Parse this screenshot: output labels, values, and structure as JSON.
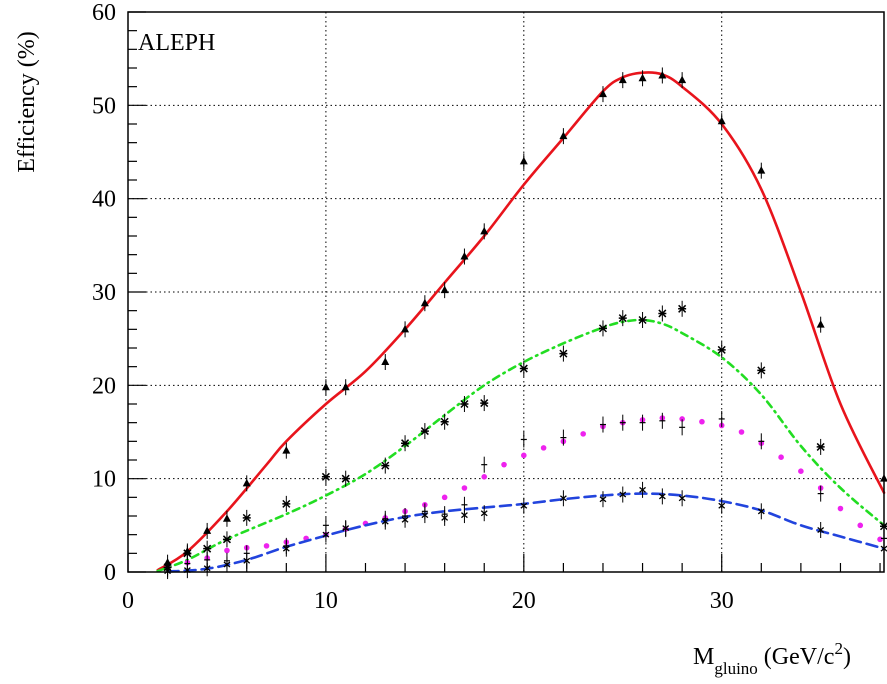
{
  "chart_data": {
    "type": "scatter",
    "title": "",
    "annotation": "ALEPH",
    "xlabel_main": "M",
    "xlabel_sub": "gluino",
    "xlabel_unit": "(GeV/c",
    "xlabel_sup": "2",
    "xlabel_close": ")",
    "ylabel": "Efficiency (%)",
    "xlim": [
      0,
      38.2
    ],
    "ylim": [
      0,
      60
    ],
    "xticks": [
      0,
      10,
      20,
      30
    ],
    "yticks": [
      0,
      10,
      20,
      30,
      40,
      50,
      60
    ],
    "grid": true,
    "colors": {
      "red": "#e8141c",
      "green": "#22dd22",
      "magenta": "#ee22ee",
      "blue": "#2244dd",
      "points": "#000000"
    },
    "curves": [
      {
        "style": "solid",
        "color": "red",
        "x": [
          1.5,
          3,
          5,
          7,
          8,
          10,
          12,
          14,
          16,
          18,
          20,
          22,
          24,
          25,
          26,
          27,
          28,
          30,
          32,
          34,
          36,
          38.2
        ],
        "y": [
          0.2,
          2.2,
          6.5,
          11.5,
          14,
          18,
          21.5,
          26,
          31,
          36,
          41.5,
          46.5,
          51.5,
          53,
          53.5,
          53.3,
          52,
          48,
          41,
          30,
          18,
          8.5
        ]
      },
      {
        "style": "dash-dot",
        "color": "green",
        "x": [
          1.5,
          3,
          5,
          8,
          10,
          12,
          14,
          16,
          18,
          20,
          22,
          24,
          25,
          26,
          27,
          28,
          30,
          32,
          34,
          36,
          38.2
        ],
        "y": [
          0.1,
          1.3,
          3.5,
          6.2,
          8.2,
          10.5,
          13.5,
          16.8,
          20,
          22.5,
          24.5,
          26.2,
          26.8,
          27,
          26.6,
          25.6,
          23,
          19,
          13.5,
          9,
          5
        ]
      },
      {
        "style": "dotted",
        "color": "magenta",
        "x": [
          2,
          3,
          4,
          5,
          6,
          7,
          8,
          9,
          10,
          11,
          12,
          13,
          14,
          15,
          16,
          17,
          18,
          19,
          20,
          21,
          22,
          23,
          24,
          25,
          26,
          27,
          28,
          29,
          30,
          31,
          32,
          33,
          34,
          35,
          36,
          37,
          38
        ],
        "y": [
          0.6,
          1,
          1.5,
          2.3,
          2.6,
          2.8,
          3.2,
          3.6,
          4,
          4.6,
          5.2,
          5.8,
          6.5,
          7.2,
          8,
          9,
          10.2,
          11.5,
          12.5,
          13.3,
          14,
          14.8,
          15.6,
          16,
          16.3,
          16.5,
          16.4,
          16.1,
          15.7,
          15,
          13.8,
          12.3,
          10.8,
          9,
          6.8,
          5,
          3.5
        ]
      },
      {
        "style": "dashed",
        "color": "blue",
        "x": [
          2,
          4,
          6,
          8,
          10,
          12,
          14,
          16,
          18,
          20,
          22,
          24,
          26,
          28,
          30,
          32,
          34,
          36,
          38.2
        ],
        "y": [
          0.05,
          0.35,
          1.3,
          2.7,
          3.9,
          5,
          5.9,
          6.5,
          6.9,
          7.3,
          7.8,
          8.2,
          8.4,
          8.2,
          7.6,
          6.6,
          5,
          3.8,
          2.5
        ]
      }
    ],
    "series": [
      {
        "marker": "triangle",
        "x": [
          2,
          3,
          4,
          5,
          6,
          8,
          10,
          11,
          13,
          14,
          15,
          16,
          17,
          18,
          20,
          22,
          24,
          25,
          26,
          27,
          28,
          30,
          32,
          35,
          38.2
        ],
        "y": [
          1,
          2.2,
          4.4,
          5.7,
          9.5,
          13,
          19.8,
          19.8,
          22.5,
          26,
          28.8,
          30.2,
          33.8,
          36.5,
          44,
          46.7,
          51.2,
          52.7,
          52.9,
          53.2,
          52.7,
          48.3,
          43,
          26.5,
          10
        ]
      },
      {
        "marker": "asterisk",
        "x": [
          2,
          3,
          4,
          5,
          6,
          8,
          10,
          11,
          13,
          14,
          15,
          16,
          17,
          18,
          20,
          22,
          24,
          25,
          26,
          27,
          28,
          30,
          32,
          35,
          38.2
        ],
        "y": [
          0.5,
          2,
          2.5,
          3.5,
          5.8,
          7.3,
          10.2,
          10,
          11.4,
          13.8,
          15.1,
          16.1,
          18,
          18.1,
          21.8,
          23.4,
          26.1,
          27.2,
          27,
          27.7,
          28.2,
          23.8,
          21.6,
          13.4,
          4.9
        ]
      },
      {
        "marker": "cross",
        "x": [
          2,
          3,
          4,
          5,
          6,
          8,
          10,
          11,
          13,
          14,
          15,
          16,
          17,
          18,
          20,
          22,
          24,
          25,
          26,
          27,
          28,
          30,
          32,
          35,
          38.2
        ],
        "y": [
          0.3,
          0.9,
          1.3,
          1.2,
          2,
          2.8,
          5,
          4.6,
          5.7,
          6,
          6.5,
          6.2,
          7.2,
          11.5,
          14.2,
          14.4,
          15.8,
          16,
          16,
          16.2,
          15.5,
          16.4,
          14,
          8.4,
          3.6
        ]
      },
      {
        "marker": "star",
        "x": [
          2,
          3,
          4,
          5,
          6,
          8,
          10,
          11,
          13,
          14,
          15,
          16,
          17,
          18,
          20,
          22,
          24,
          25,
          26,
          27,
          28,
          30,
          32,
          35,
          38.2
        ],
        "y": [
          0.1,
          0.2,
          0.4,
          0.8,
          1.2,
          2.5,
          4,
          4.7,
          5.4,
          5.6,
          6.1,
          5.8,
          6.1,
          6.3,
          7.1,
          7.9,
          7.8,
          8.3,
          8.8,
          8.1,
          7.9,
          7.1,
          6.5,
          4.5,
          2.5
        ]
      }
    ]
  }
}
